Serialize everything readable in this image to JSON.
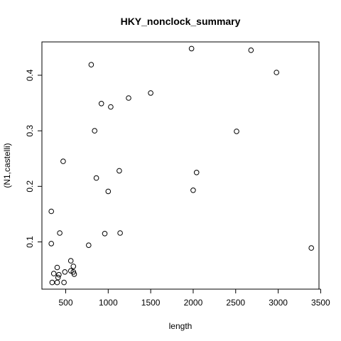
{
  "chart_data": {
    "type": "scatter",
    "title": "HKY_nonclock_summary",
    "xlabel": "length",
    "ylabel": "(N1,castelli)",
    "xlim": [
      220,
      3480
    ],
    "ylim": [
      0.015,
      0.46
    ],
    "xticks": [
      500,
      1000,
      1500,
      2000,
      2500,
      3000,
      3500
    ],
    "yticks": [
      0.1,
      0.2,
      0.3,
      0.4
    ],
    "xtick_labels": [
      "500",
      "1000",
      "1500",
      "2000",
      "2500",
      "3000",
      "3500"
    ],
    "ytick_labels": [
      "0.1",
      "0.2",
      "0.3",
      "0.4"
    ],
    "grid": false,
    "points": [
      {
        "x": 1980,
        "y": 0.448
      },
      {
        "x": 2680,
        "y": 0.445
      },
      {
        "x": 2980,
        "y": 0.405
      },
      {
        "x": 800,
        "y": 0.419
      },
      {
        "x": 1500,
        "y": 0.368
      },
      {
        "x": 1240,
        "y": 0.359
      },
      {
        "x": 920,
        "y": 0.349
      },
      {
        "x": 1030,
        "y": 0.343
      },
      {
        "x": 840,
        "y": 0.3
      },
      {
        "x": 2510,
        "y": 0.299
      },
      {
        "x": 470,
        "y": 0.245
      },
      {
        "x": 1130,
        "y": 0.228
      },
      {
        "x": 2040,
        "y": 0.225
      },
      {
        "x": 860,
        "y": 0.215
      },
      {
        "x": 1000,
        "y": 0.191
      },
      {
        "x": 2000,
        "y": 0.193
      },
      {
        "x": 330,
        "y": 0.155
      },
      {
        "x": 430,
        "y": 0.116
      },
      {
        "x": 960,
        "y": 0.115
      },
      {
        "x": 1140,
        "y": 0.116
      },
      {
        "x": 330,
        "y": 0.097
      },
      {
        "x": 770,
        "y": 0.094
      },
      {
        "x": 3390,
        "y": 0.089
      },
      {
        "x": 560,
        "y": 0.066
      },
      {
        "x": 590,
        "y": 0.056
      },
      {
        "x": 400,
        "y": 0.054
      },
      {
        "x": 560,
        "y": 0.048
      },
      {
        "x": 490,
        "y": 0.046
      },
      {
        "x": 590,
        "y": 0.046
      },
      {
        "x": 360,
        "y": 0.043
      },
      {
        "x": 600,
        "y": 0.042
      },
      {
        "x": 420,
        "y": 0.041
      },
      {
        "x": 410,
        "y": 0.036
      },
      {
        "x": 340,
        "y": 0.027
      },
      {
        "x": 400,
        "y": 0.027
      },
      {
        "x": 480,
        "y": 0.027
      }
    ]
  }
}
